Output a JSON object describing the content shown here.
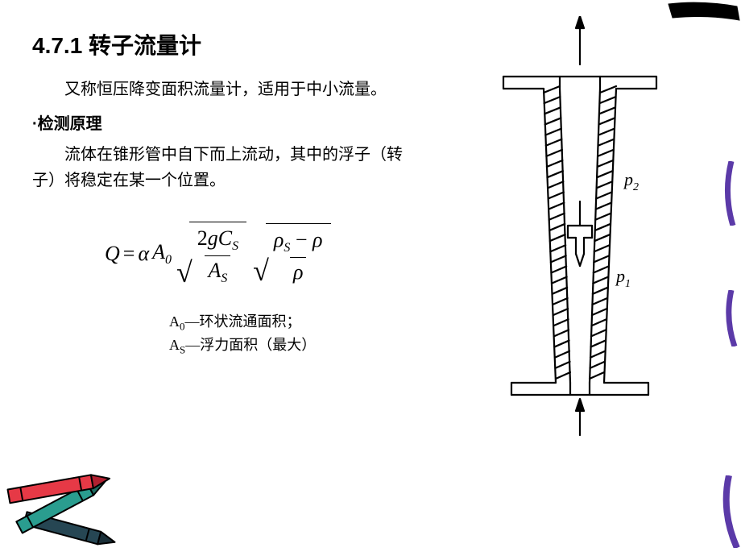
{
  "title": "4.7.1 转子流量计",
  "para1": "又称恒压降变面积流量计，适用于中小流量。",
  "subtitle": "·检测原理",
  "para2": "流体在锥形管中自下而上流动，其中的浮子（转子）将稳定在某一个位置。",
  "formula": {
    "Q": "Q",
    "eq": "=",
    "alpha": "α",
    "A0": "A",
    "A0_sub": "0",
    "frac1_num_2g": "2",
    "frac1_num_g": "g",
    "frac1_num_C": "C",
    "frac1_num_Csub": "S",
    "frac1_den_A": "A",
    "frac1_den_Asub": "S",
    "frac2_num_rhoS": "ρ",
    "frac2_num_rhoSsub": "S",
    "frac2_num_minus": " − ",
    "frac2_num_rho": "ρ",
    "frac2_den_rho": "ρ"
  },
  "legend": {
    "line1_A": "A",
    "line1_sub": "0",
    "line1_text": "—环状流通面积；",
    "line2_A": "A",
    "line2_sub": "S",
    "line2_text": "—浮力面积（最大）"
  },
  "diagram": {
    "p1": "p",
    "p1_sub": "1",
    "p2": "p",
    "p2_sub": "2",
    "stroke": "#000000",
    "stroke_width": 2.2
  },
  "crayons": {
    "c1_body": "#e63946",
    "c1_tip": "#b02030",
    "c2_body": "#2a9d8f",
    "c2_tip": "#1d6b61",
    "c3_body": "#264653",
    "c3_tip": "#1a2f38",
    "outline": "#000000"
  },
  "deco": {
    "purple": "#5b3aa8",
    "black": "#000000"
  },
  "colors": {
    "bg": "#ffffff",
    "text": "#000000"
  }
}
